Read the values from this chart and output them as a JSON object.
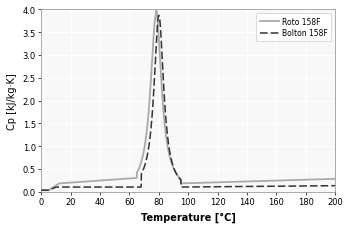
{
  "title": "",
  "xlabel": "Temperature [°C]",
  "ylabel": "Cp [kJ/kg·K]",
  "xlim": [
    0,
    200
  ],
  "ylim": [
    0,
    4.0
  ],
  "xticks": [
    0,
    20,
    40,
    60,
    80,
    100,
    120,
    140,
    160,
    180,
    200
  ],
  "yticks": [
    0.0,
    0.5,
    1.0,
    1.5,
    2.0,
    2.5,
    3.0,
    3.5,
    4.0
  ],
  "legend": [
    "Roto 158F",
    "Bolton 158F"
  ],
  "roto_color": "#aaaaaa",
  "bolton_color": "#333333",
  "grid_color": "#e0e0e0",
  "background_color": "#f8f8f8",
  "peak_temp_roto": 78,
  "peak_temp_bolton": 80,
  "peak_value": 3.87
}
